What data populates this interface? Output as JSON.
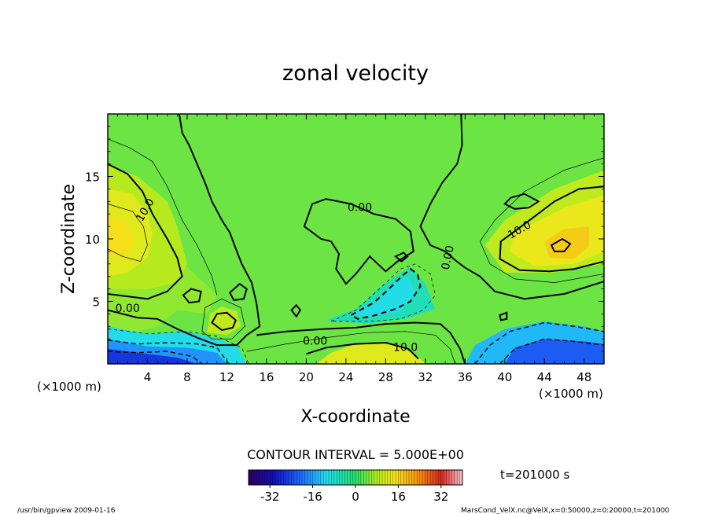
{
  "chart_data": {
    "type": "heatmap",
    "title": "zonal velocity",
    "xlabel": "X-coordinate",
    "ylabel": "Z-coordinate",
    "x_unit": "(×1000 m)",
    "y_unit": "(×1000 m)",
    "xlim": [
      0,
      50
    ],
    "ylim": [
      0,
      20
    ],
    "x_ticks": [
      "4",
      "8",
      "12",
      "16",
      "20",
      "24",
      "28",
      "32",
      "36",
      "40",
      "44",
      "48"
    ],
    "y_ticks": [
      "5",
      "10",
      "15"
    ],
    "contour_labels": [
      "10.0",
      "0.00",
      "0.00",
      "0.00",
      "10.0",
      "10.0",
      "0.00"
    ],
    "contour_interval_text": "CONTOUR INTERVAL = 5.000E+00",
    "colorbar": {
      "range": [
        -40,
        40
      ],
      "tick_labels": [
        "-32",
        "-16",
        "0",
        "16",
        "32"
      ],
      "tick_values": [
        -32,
        -16,
        0,
        16,
        32
      ]
    },
    "time_label": "t=201000 s",
    "footer_left": "/usr/bin/gpview   2009-01-16",
    "footer_right": "MarsCond_VelX.nc@VelX,x=0:50000,z=0:20000,t=201000",
    "features": [
      {
        "kind": "max",
        "x": 1,
        "z": 10.5,
        "value": 12
      },
      {
        "kind": "max",
        "x": 46,
        "z": 9.5,
        "value": 16
      },
      {
        "kind": "max",
        "x": 26,
        "z": 1,
        "value": 12
      },
      {
        "kind": "max",
        "x": 11,
        "z": 3.5,
        "value": 9
      },
      {
        "kind": "min",
        "x": 3,
        "z": 0.2,
        "value": -30
      },
      {
        "kind": "min",
        "x": 45,
        "z": 0.8,
        "value": -26
      },
      {
        "kind": "min",
        "x": 28,
        "z": 5.8,
        "value": -9
      }
    ]
  }
}
